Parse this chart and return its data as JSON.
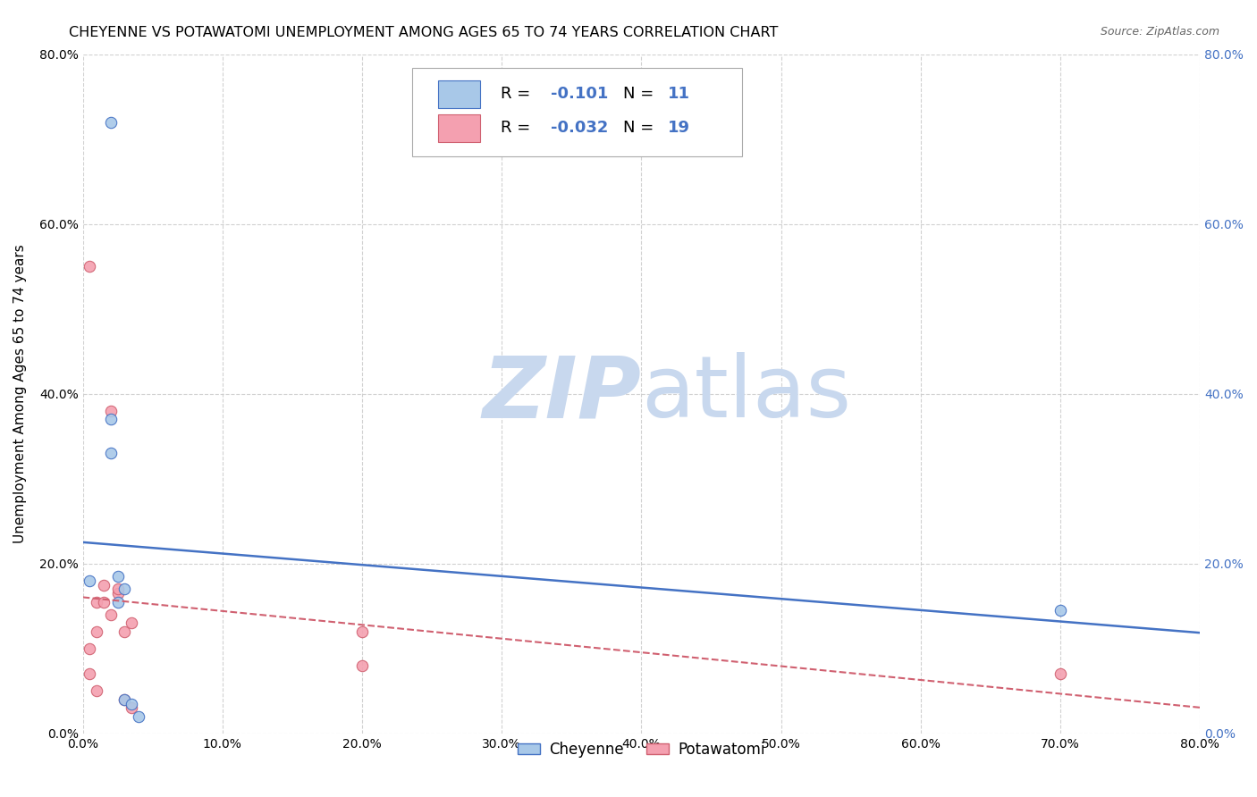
{
  "title": "CHEYENNE VS POTAWATOMI UNEMPLOYMENT AMONG AGES 65 TO 74 YEARS CORRELATION CHART",
  "source": "Source: ZipAtlas.com",
  "ylabel": "Unemployment Among Ages 65 to 74 years",
  "xlim": [
    0.0,
    0.8
  ],
  "ylim": [
    0.0,
    0.8
  ],
  "xticks": [
    0.0,
    0.1,
    0.2,
    0.3,
    0.4,
    0.5,
    0.6,
    0.7,
    0.8
  ],
  "yticks": [
    0.0,
    0.2,
    0.4,
    0.6,
    0.8
  ],
  "ytick_labels": [
    "0.0%",
    "20.0%",
    "40.0%",
    "60.0%",
    "80.0%"
  ],
  "xtick_labels": [
    "0.0%",
    "10.0%",
    "20.0%",
    "30.0%",
    "40.0%",
    "50.0%",
    "60.0%",
    "70.0%",
    "80.0%"
  ],
  "cheyenne_x": [
    0.02,
    0.02,
    0.02,
    0.025,
    0.025,
    0.03,
    0.03,
    0.035,
    0.04,
    0.7,
    0.005
  ],
  "cheyenne_y": [
    0.72,
    0.37,
    0.33,
    0.185,
    0.155,
    0.17,
    0.04,
    0.035,
    0.02,
    0.145,
    0.18
  ],
  "potawatomi_x": [
    0.005,
    0.005,
    0.005,
    0.01,
    0.01,
    0.01,
    0.015,
    0.015,
    0.02,
    0.02,
    0.025,
    0.025,
    0.03,
    0.03,
    0.035,
    0.035,
    0.2,
    0.2,
    0.7
  ],
  "potawatomi_y": [
    0.55,
    0.1,
    0.07,
    0.155,
    0.12,
    0.05,
    0.175,
    0.155,
    0.38,
    0.14,
    0.165,
    0.17,
    0.12,
    0.04,
    0.13,
    0.03,
    0.12,
    0.08,
    0.07
  ],
  "cheyenne_color": "#a8c8e8",
  "potawatomi_color": "#f4a0b0",
  "cheyenne_line_color": "#4472c4",
  "potawatomi_line_color": "#d06070",
  "R_cheyenne": "-0.101",
  "N_cheyenne": "11",
  "R_potawatomi": "-0.032",
  "N_potawatomi": "19",
  "watermark_zip": "ZIP",
  "watermark_atlas": "atlas",
  "watermark_color_zip": "#c8d8ee",
  "watermark_color_atlas": "#c8d8ee",
  "grid_color": "#cccccc",
  "background_color": "#ffffff",
  "legend_cheyenne": "Cheyenne",
  "legend_potawatomi": "Potawatomi",
  "title_fontsize": 11.5,
  "axis_label_fontsize": 11,
  "tick_fontsize": 10,
  "marker_size": 80
}
